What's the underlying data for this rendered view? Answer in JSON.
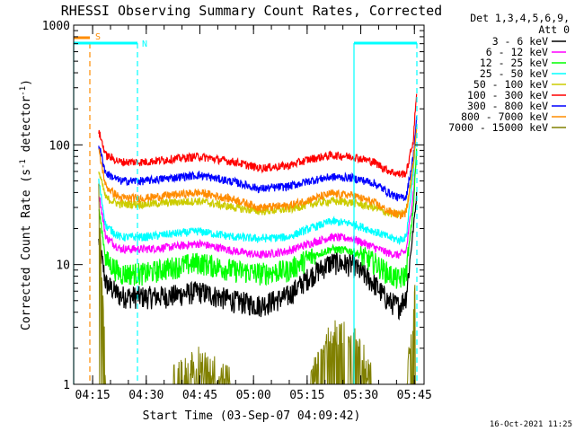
{
  "chart_data": {
    "type": "line",
    "title": "RHESSI Observing Summary Count Rates, Corrected",
    "xlabel": "Start Time (03-Sep-07 04:09:42)",
    "ylabel_main": "Corrected Count Rate (s",
    "ylabel_sup1": "-1",
    "ylabel_mid": " detector",
    "ylabel_sup2": "-1",
    "ylabel_end": ")",
    "yscale": "log",
    "ylim": [
      1,
      1000
    ],
    "xlim_minutes": [
      0,
      98
    ],
    "x_ticks": [
      {
        "m": 5.3,
        "label": "04:15"
      },
      {
        "m": 20.3,
        "label": "04:30"
      },
      {
        "m": 35.3,
        "label": "04:45"
      },
      {
        "m": 50.3,
        "label": "05:00"
      },
      {
        "m": 65.3,
        "label": "05:15"
      },
      {
        "m": 80.3,
        "label": "05:30"
      },
      {
        "m": 95.3,
        "label": "05:45"
      }
    ],
    "y_ticks": [
      {
        "v": 1,
        "label": "1"
      },
      {
        "v": 10,
        "label": "10"
      },
      {
        "v": 100,
        "label": "100"
      },
      {
        "v": 1000,
        "label": "1000"
      }
    ],
    "legend_header": [
      "Det 1,3,4,5,6,9,",
      "Att 0"
    ],
    "series": [
      {
        "name": "3 - 6 keV",
        "color": "#000000",
        "x": [
          7,
          9,
          13,
          20,
          27,
          35,
          45,
          52,
          60,
          66,
          72,
          78,
          84,
          88,
          91,
          93,
          95,
          96
        ],
        "y": [
          16,
          7,
          5.5,
          5.4,
          5.5,
          6,
          5,
          4.6,
          5.5,
          8,
          10.5,
          10,
          7,
          5,
          4.5,
          5.5,
          20,
          40
        ]
      },
      {
        "name": "6 - 12 keV",
        "color": "#ff00ff",
        "x": [
          7,
          9,
          13,
          20,
          27,
          35,
          45,
          52,
          60,
          66,
          72,
          78,
          84,
          88,
          91,
          93,
          95,
          96
        ],
        "y": [
          40,
          17,
          13.5,
          13.5,
          14,
          15,
          13,
          12,
          13,
          15,
          17,
          16.5,
          14,
          12.5,
          12,
          13,
          40,
          90
        ]
      },
      {
        "name": "12 - 25 keV",
        "color": "#00ff00",
        "x": [
          7,
          9,
          13,
          20,
          27,
          35,
          45,
          52,
          60,
          66,
          72,
          78,
          84,
          88,
          91,
          93,
          95,
          96
        ],
        "y": [
          30,
          11,
          8.5,
          8.5,
          9.5,
          10.5,
          9,
          8.5,
          9,
          11.5,
          13.5,
          13,
          10.5,
          8.5,
          7.5,
          8.5,
          30,
          100
        ]
      },
      {
        "name": "25 - 50 keV",
        "color": "#00ffff",
        "x": [
          7,
          9,
          13,
          20,
          27,
          35,
          45,
          52,
          60,
          66,
          72,
          78,
          84,
          88,
          91,
          93,
          95,
          96
        ],
        "y": [
          50,
          21,
          17,
          17,
          18,
          19,
          17,
          16.5,
          17,
          20,
          23,
          22,
          19,
          17,
          16,
          17,
          60,
          140
        ]
      },
      {
        "name": "50 - 100 keV",
        "color": "#cccc00",
        "x": [
          7,
          9,
          13,
          20,
          27,
          35,
          45,
          52,
          60,
          66,
          72,
          78,
          84,
          88,
          91,
          93,
          95,
          96
        ],
        "y": [
          60,
          36,
          32,
          32,
          33,
          34,
          30,
          28,
          29,
          32,
          34,
          33,
          30,
          27,
          26,
          28,
          70,
          150
        ]
      },
      {
        "name": "100 - 300 keV",
        "color": "#ff0000",
        "x": [
          7,
          9,
          13,
          20,
          27,
          35,
          45,
          52,
          60,
          66,
          72,
          78,
          84,
          88,
          91,
          93,
          95,
          96
        ],
        "y": [
          130,
          82,
          72,
          72,
          76,
          80,
          72,
          64,
          67,
          76,
          82,
          80,
          72,
          61,
          57,
          58,
          110,
          300
        ]
      },
      {
        "name": "300 - 800 keV",
        "color": "#0000ff",
        "x": [
          7,
          9,
          13,
          20,
          27,
          35,
          45,
          52,
          60,
          66,
          72,
          78,
          84,
          88,
          91,
          93,
          95,
          96
        ],
        "y": [
          100,
          58,
          50,
          50,
          53,
          56,
          49,
          43,
          45,
          50,
          54,
          53,
          48,
          40,
          36,
          37,
          80,
          180
        ]
      },
      {
        "name": "800 - 7000 keV",
        "color": "#ff8c00",
        "x": [
          7,
          9,
          13,
          20,
          27,
          35,
          45,
          52,
          60,
          66,
          72,
          78,
          84,
          88,
          91,
          93,
          95,
          96
        ],
        "y": [
          90,
          45,
          36,
          36,
          38,
          40,
          35,
          30,
          31,
          35,
          39,
          38,
          33,
          28,
          26,
          27,
          70,
          160
        ]
      },
      {
        "name": "7000 - 15000 keV",
        "color": "#808000",
        "x": [
          7,
          9,
          13,
          20,
          27,
          35,
          45,
          52,
          60,
          66,
          72,
          78,
          84,
          88,
          91,
          93,
          95,
          96
        ],
        "y": [
          40,
          1,
          1,
          1,
          1,
          1.5,
          1,
          1,
          1,
          1,
          2.5,
          2.5,
          1,
          1,
          1,
          1,
          3,
          10
        ]
      }
    ],
    "flag_labels": {
      "s": "S",
      "n": "N"
    },
    "timestamp": "16-Oct-2021 11:25"
  }
}
